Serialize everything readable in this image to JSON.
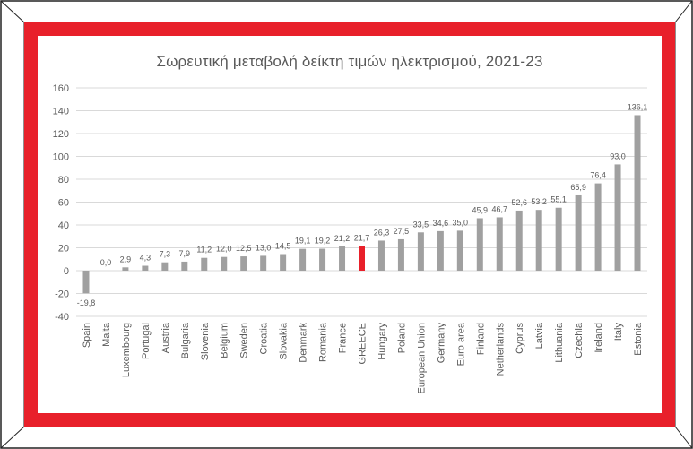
{
  "chart_data": {
    "type": "bar",
    "title": "Σωρευτική μεταβολή  δείκτη τιμών ηλεκτρισμού, 2021-23",
    "xlabel": "",
    "ylabel": "",
    "ylim": [
      -40,
      160
    ],
    "yticks": [
      -40,
      -20,
      0,
      20,
      40,
      60,
      80,
      100,
      120,
      140,
      160
    ],
    "grid": true,
    "legend": "none",
    "categories": [
      "Spain",
      "Malta",
      "Luxembourg",
      "Portugal",
      "Austria",
      "Bulgaria",
      "Slovenia",
      "Belgium",
      "Sweden",
      "Croatia",
      "Slovakia",
      "Denmark",
      "Romania",
      "France",
      "GREECE",
      "Hungary",
      "Poland",
      "European Union",
      "Germany",
      "Euro area",
      "Finland",
      "Netherlands",
      "Cyprus",
      "Latvia",
      "Lithuania",
      "Czechia",
      "Ireland",
      "Italy",
      "Estonia"
    ],
    "values": [
      -19.8,
      0.0,
      2.9,
      4.3,
      7.3,
      7.9,
      11.2,
      12.0,
      12.5,
      13.0,
      14.5,
      19.1,
      19.2,
      21.2,
      21.7,
      26.3,
      27.5,
      33.5,
      34.6,
      35.0,
      45.9,
      46.7,
      52.6,
      53.2,
      55.1,
      65.9,
      76.4,
      93.0,
      136.1
    ],
    "data_labels": [
      "-19,8",
      "0,0",
      "2,9",
      "4,3",
      "7,3",
      "7,9",
      "11,2",
      "12,0",
      "12,5",
      "13,0",
      "14,5",
      "19,1",
      "19,2",
      "21,2",
      "21,7",
      "26,3",
      "27,5",
      "33,5",
      "34,6",
      "35,0",
      "45,9",
      "46,7",
      "52,6",
      "53,2",
      "55,1",
      "65,9",
      "76,4",
      "93,0",
      "136,1"
    ],
    "highlight_category": "GREECE",
    "colors": {
      "bar": "#a0a0a0",
      "highlight": "#e8202a",
      "grid": "#d9d9d9",
      "text": "#595959",
      "border": "#e8202a"
    }
  }
}
